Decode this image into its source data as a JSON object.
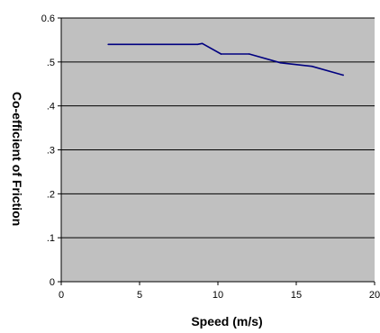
{
  "chart_data": {
    "type": "line",
    "title": "",
    "xlabel": "Speed (m/s)",
    "ylabel": "Co-efficient of Friction",
    "xlim": [
      0,
      20
    ],
    "ylim": [
      0,
      0.6
    ],
    "x_ticks": [
      {
        "value": 0,
        "label": "0"
      },
      {
        "value": 5,
        "label": "5"
      },
      {
        "value": 10,
        "label": "10"
      },
      {
        "value": 15,
        "label": "15"
      },
      {
        "value": 20,
        "label": "20"
      }
    ],
    "y_ticks": [
      {
        "value": 0,
        "label": "0"
      },
      {
        "value": 0.1,
        "label": ".1"
      },
      {
        "value": 0.2,
        "label": ".2"
      },
      {
        "value": 0.3,
        "label": ".3"
      },
      {
        "value": 0.4,
        "label": ".4"
      },
      {
        "value": 0.5,
        "label": ".5"
      },
      {
        "value": 0.6,
        "label": "0.6"
      }
    ],
    "grid": "horizontal",
    "legend": "none",
    "colors": {
      "plot_background": "#c0c0c0",
      "series_line": "#000080",
      "gridline": "#000000"
    },
    "series": [
      {
        "x": [
          3,
          5,
          8.7,
          9,
          10.2,
          12,
          14,
          16,
          18
        ],
        "y": [
          0.54,
          0.54,
          0.54,
          0.542,
          0.518,
          0.518,
          0.498,
          0.49,
          0.47
        ]
      }
    ]
  }
}
